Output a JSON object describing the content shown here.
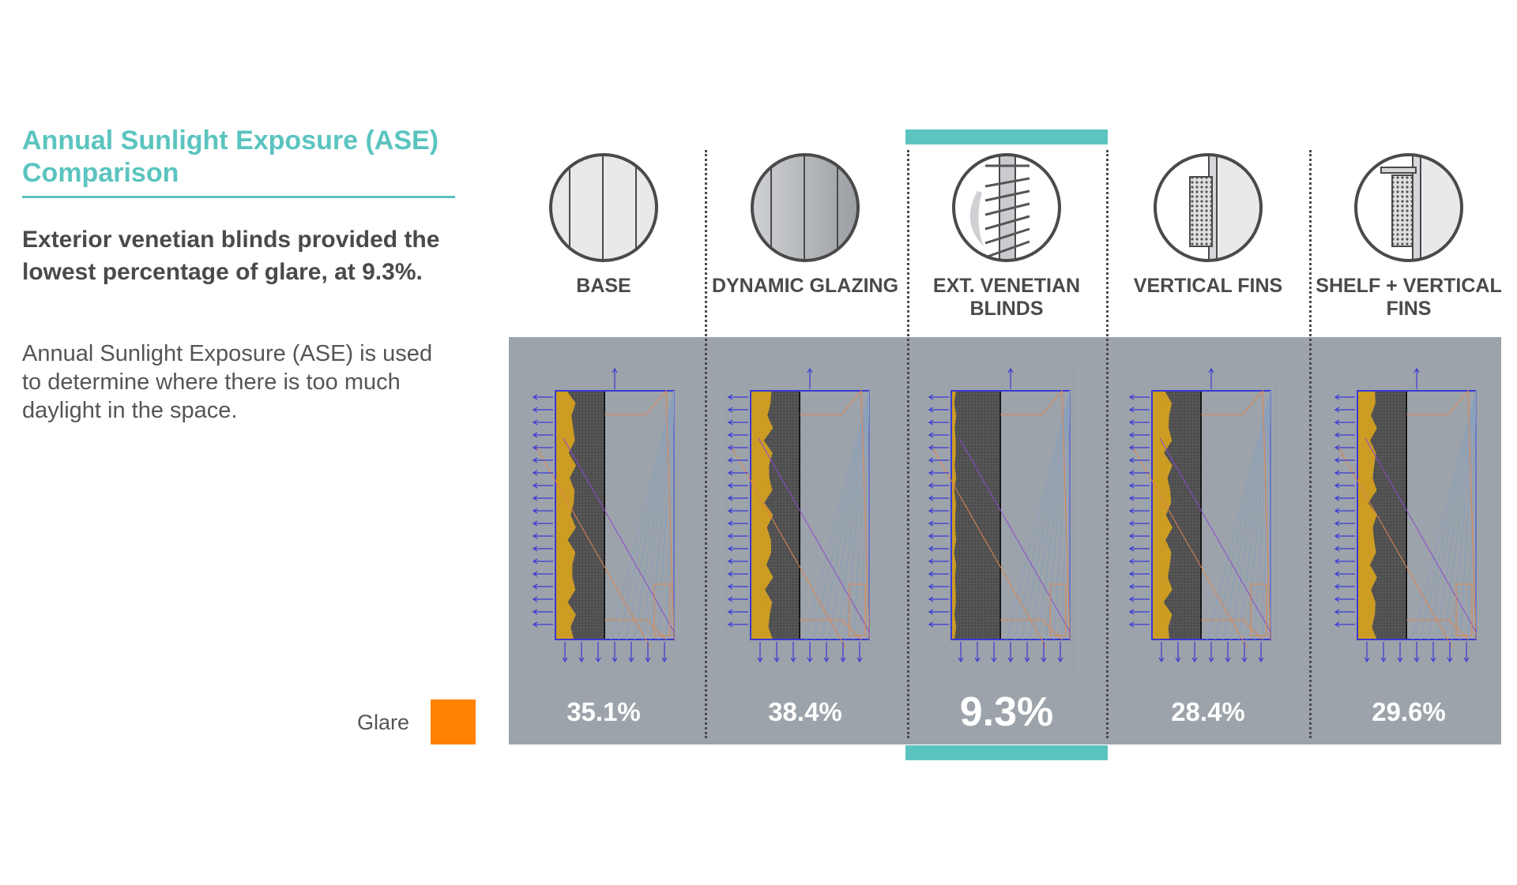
{
  "colors": {
    "accent": "#5bc4bf",
    "heading": "#4a4a4a",
    "band": "#9da3aa",
    "glare": "#ff8200",
    "sunlit": "#d9a41e",
    "grid": "#4b4b4b",
    "arrows": "#3a3ad6",
    "rays": "#e0844f",
    "sky": "#8aa0bb"
  },
  "panel": {
    "title": "Annual Sunlight Exposure (ASE) Comparison",
    "headline": "Exterior venetian blinds provided the lowest percentage of glare, at 9.3%.",
    "description": "Annual Sunlight Exposure (ASE) is used to determine where there is too much daylight in the space."
  },
  "legend": {
    "label": "Glare",
    "swatch_color": "#ff8200"
  },
  "options": [
    {
      "label": "BASE",
      "icon": "base-window-icon",
      "value": "35.1%",
      "highlight": false
    },
    {
      "label": "DYNAMIC GLAZING",
      "icon": "dynamic-glazing-icon",
      "value": "38.4%",
      "highlight": false
    },
    {
      "label": "EXT. VENETIAN BLINDS",
      "icon": "venetian-blinds-icon",
      "value": "9.3%",
      "highlight": true
    },
    {
      "label": "VERTICAL FINS",
      "icon": "vertical-fins-icon",
      "value": "28.4%",
      "highlight": false
    },
    {
      "label": "SHELF + VERTICAL FINS",
      "icon": "shelf-vertical-fins-icon",
      "value": "29.6%",
      "highlight": false
    }
  ]
}
